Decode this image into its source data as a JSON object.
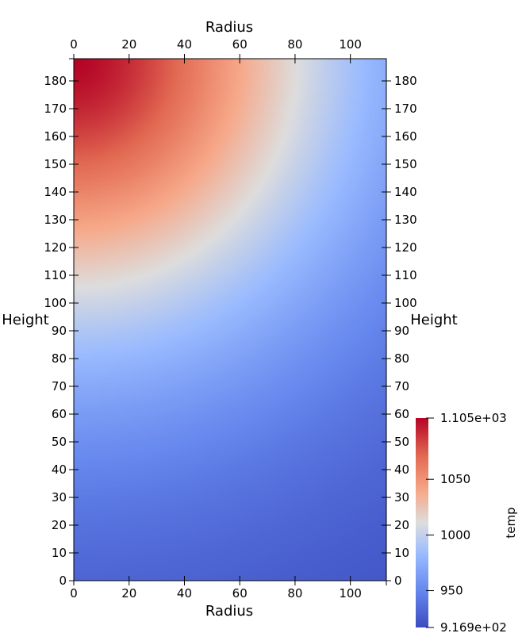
{
  "chart_data": {
    "type": "heatmap",
    "title": "",
    "xlabel": "Radius",
    "ylabel": "Height",
    "xlim": [
      0,
      113
    ],
    "ylim": [
      0,
      188
    ],
    "x_ticks": [
      0,
      20,
      40,
      60,
      80,
      100
    ],
    "y_ticks": [
      0,
      10,
      20,
      30,
      40,
      50,
      60,
      70,
      80,
      90,
      100,
      110,
      120,
      130,
      140,
      150,
      160,
      170,
      180
    ],
    "field": {
      "name": "temp",
      "min": 916.9,
      "max": 1105,
      "hot_spot": {
        "radius": 0,
        "height": 188
      },
      "samples": [
        {
          "radius": 0,
          "height": 188,
          "temp": 1105
        },
        {
          "radius": 0,
          "height": 120,
          "temp": 1045
        },
        {
          "radius": 0,
          "height": 95,
          "temp": 1000
        },
        {
          "radius": 0,
          "height": 60,
          "temp": 960
        },
        {
          "radius": 0,
          "height": 0,
          "temp": 917
        },
        {
          "radius": 60,
          "height": 188,
          "temp": 1045
        },
        {
          "radius": 80,
          "height": 188,
          "temp": 1000
        },
        {
          "radius": 113,
          "height": 188,
          "temp": 945
        },
        {
          "radius": 113,
          "height": 0,
          "temp": 917
        }
      ]
    },
    "colorbar": {
      "title": "temp",
      "tick_labels": [
        "1.105e+03",
        "1050",
        "1000",
        "950",
        "9.169e+02"
      ],
      "tick_values": [
        1105,
        1050,
        1000,
        950,
        916.9
      ],
      "colormap": "cool-to-warm",
      "colors": {
        "low": "#3b4cc0",
        "mid": "#dddddd",
        "high": "#b40426"
      },
      "placement": "bottom-right"
    },
    "axes": [
      "bottom",
      "top",
      "left",
      "right"
    ]
  }
}
